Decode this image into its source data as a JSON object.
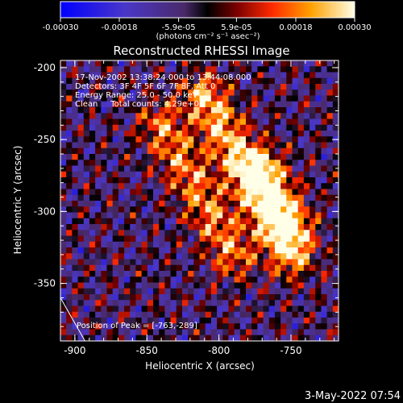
{
  "chart_data": {
    "type": "heatmap",
    "title": "Reconstructed RHESSI Image",
    "xlabel": "Heliocentric X (arcsec)",
    "ylabel": "Heliocentric Y (arcsec)",
    "xlim": [
      -910,
      -717
    ],
    "ylim": [
      -390,
      -195
    ],
    "x_ticks": [
      -900,
      -850,
      -800,
      -750
    ],
    "x_tick_labels": [
      "-900",
      "-850",
      "-800",
      "-750"
    ],
    "y_ticks": [
      -200,
      -250,
      -300,
      -350
    ],
    "y_tick_labels": [
      "-200",
      "-250",
      "-300",
      "-350"
    ],
    "colorbar": {
      "range": [
        -0.0003,
        0.0003
      ],
      "ticks": [
        -0.0003,
        -0.00018,
        -5.9e-05,
        5.9e-05,
        0.00018,
        0.0003
      ],
      "tick_labels": [
        "-0.00030",
        "-0.00018",
        "-5.9e-05",
        "5.9e-05",
        "0.00018",
        "0.00030"
      ],
      "unit_label": "(photons cm⁻² s⁻¹ asec⁻²)"
    },
    "annotations": [
      "17-Nov-2002 13:38:24.000 to 13:44:08.000",
      "Detectors: 3F 4F 5F 6F 7F 8F, Att 0",
      "Energy Range: 25.0 - 50.0 keV",
      "Clean     Total counts: 4.29e+03"
    ],
    "peak_label": "Position of Peak = [-763,-289]",
    "peak": [
      -763,
      -289
    ],
    "source_ridges": [
      {
        "x0": -810,
        "y0": -220,
        "x1": -750,
        "y1": -330,
        "amp": 0.00028
      },
      {
        "x0": -840,
        "y0": -240,
        "x1": -790,
        "y1": -330,
        "amp": 0.00022
      },
      {
        "x0": -770,
        "y0": -270,
        "x1": -750,
        "y1": -310,
        "amp": 0.00026
      }
    ],
    "limb": {
      "x0": -910,
      "y0": -360,
      "x1": -893,
      "y1": -390
    }
  },
  "footer": {
    "timestamp": "3-May-2022 07:54"
  }
}
